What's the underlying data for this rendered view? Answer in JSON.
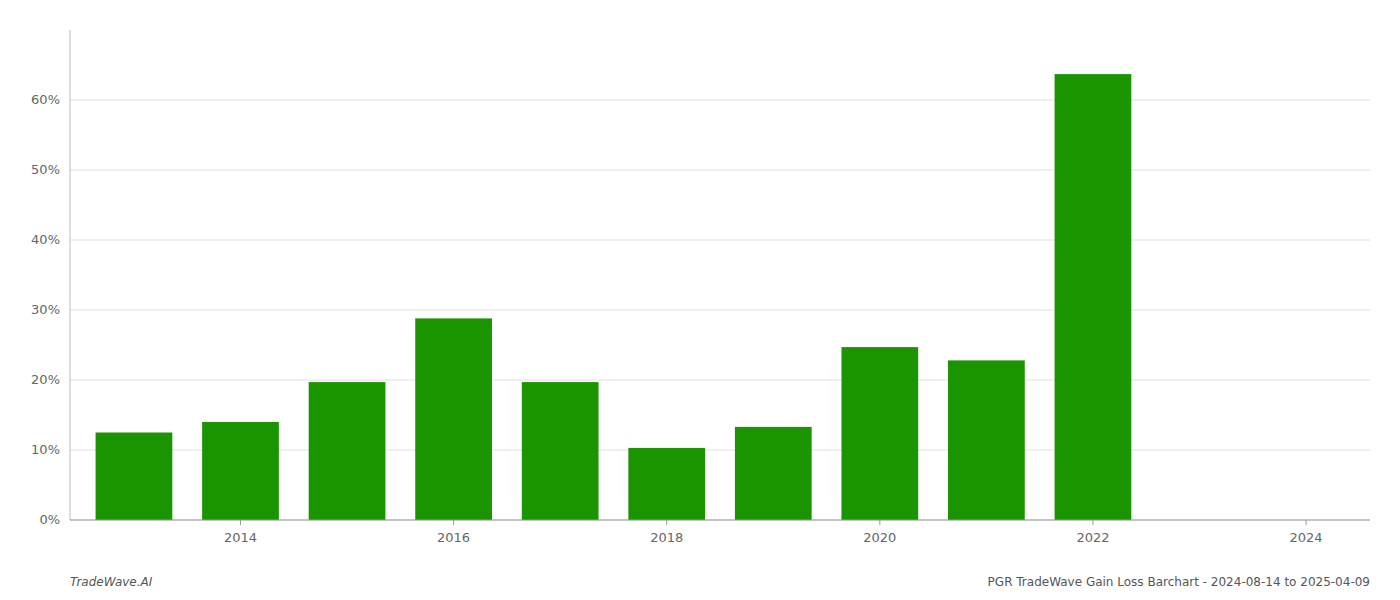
{
  "chart_data": {
    "type": "bar",
    "x": [
      2013,
      2014,
      2015,
      2016,
      2017,
      2018,
      2019,
      2020,
      2021,
      2022,
      2023
    ],
    "values": [
      0.125,
      0.14,
      0.197,
      0.288,
      0.197,
      0.103,
      0.133,
      0.247,
      0.228,
      0.637,
      0.0
    ],
    "color": "#1a9400",
    "xlim": [
      2012.4,
      2024.6
    ],
    "xticks": [
      2014,
      2016,
      2018,
      2020,
      2022,
      2024
    ],
    "ylim": [
      0,
      0.7
    ],
    "yticks": [
      {
        "value": 0.0,
        "label": "0%"
      },
      {
        "value": 0.1,
        "label": "10%"
      },
      {
        "value": 0.2,
        "label": "20%"
      },
      {
        "value": 0.3,
        "label": "30%"
      },
      {
        "value": 0.4,
        "label": "40%"
      },
      {
        "value": 0.5,
        "label": "50%"
      },
      {
        "value": 0.6,
        "label": "60%"
      }
    ],
    "grid": true,
    "annotations": [
      "TradeWave.AI",
      "PGR TradeWave Gain Loss Barchart - 2024-08-14 to 2025-04-09"
    ]
  }
}
